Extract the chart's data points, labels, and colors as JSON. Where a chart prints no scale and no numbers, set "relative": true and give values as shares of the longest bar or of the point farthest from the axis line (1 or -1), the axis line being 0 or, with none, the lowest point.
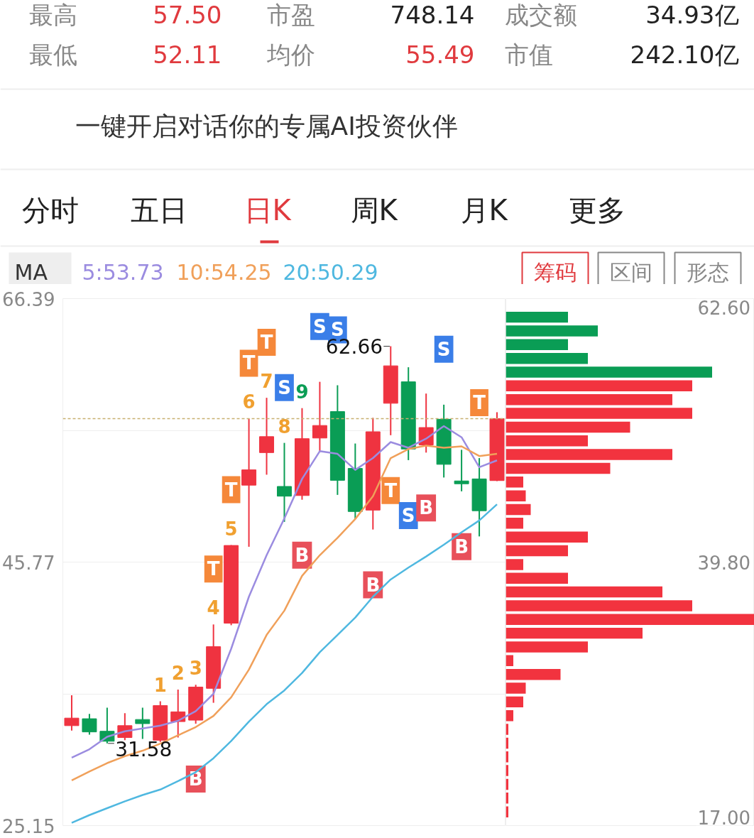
{
  "chart_data": [
    {
      "type": "other",
      "annotations": [
        "最高",
        "57.50",
        "市盈",
        "748.14",
        "成交额",
        "34.93亿",
        "最低",
        "52.11",
        "均价",
        "55.49",
        "市值",
        "242.10亿",
        "一键开启对话你的专属AI投资伙伴",
        "分时",
        "五日",
        "日K",
        "周K",
        "月K",
        "更多"
      ]
    },
    {
      "type": "candlestick",
      "categories": [
        null,
        null,
        null,
        null,
        null,
        null,
        null,
        null,
        null,
        null,
        null,
        null,
        null,
        null,
        null,
        null,
        null,
        null,
        null,
        null,
        null,
        null,
        null,
        null,
        null
      ],
      "ohlc": [
        [
          32.97,
          35.35,
          32.59,
          33.56
        ],
        [
          33.51,
          33.89,
          32.26,
          32.48
        ],
        [
          32.53,
          34.38,
          31.58,
          31.75
        ],
        [
          32.04,
          33.94,
          31.83,
          32.97
        ],
        [
          33.45,
          34.38,
          31.93,
          33.13
        ],
        [
          31.83,
          34.87,
          31.7,
          34.54
        ],
        [
          33.29,
          35.79,
          32.04,
          34.05
        ],
        [
          33.4,
          36.17,
          33.13,
          35.99
        ],
        [
          35.89,
          40.89,
          34.76,
          39.15
        ],
        [
          40.99,
          47.1,
          40.83,
          47.07
        ],
        [
          51.79,
          57.0,
          46.97,
          52.99
        ],
        [
          54.34,
          58.63,
          52.61,
          55.59
        ],
        [
          51.69,
          55.1,
          48.92,
          50.93
        ],
        [
          50.98,
          57.82,
          50.65,
          55.43
        ],
        [
          55.48,
          59.88,
          54.38,
          56.46
        ],
        [
          57.55,
          59.61,
          51.03,
          52.17
        ],
        [
          53.1,
          55.05,
          49.14,
          49.73
        ],
        [
          49.84,
          57.06,
          48.32,
          55.97
        ],
        [
          58.2,
          62.66,
          55.7,
          61.13
        ],
        [
          59.88,
          61.02,
          53.75,
          54.62
        ],
        [
          54.94,
          58.96,
          54.34,
          56.3
        ],
        [
          56.95,
          58.09,
          52.39,
          53.42
        ],
        [
          52.12,
          54.56,
          51.31,
          51.9
        ],
        [
          52.28,
          53.91,
          47.78,
          49.79
        ],
        [
          52.15,
          57.5,
          52.11,
          57.0
        ]
      ],
      "colors": [
        "#ef3340",
        "#0a9d55",
        "#0a9d55",
        "#ef3340",
        "#0a9d55",
        "#ef3340",
        "#ef3340",
        "#ef3340",
        "#ef3340",
        "#ef3340",
        "#ef3340",
        "#ef3340",
        "#0a9d55",
        "#ef3340",
        "#ef3340",
        "#0a9d55",
        "#0a9d55",
        "#ef3340",
        "#ef3340",
        "#0a9d55",
        "#ef3340",
        "#0a9d55",
        "#0a9d55",
        "#0a9d55",
        "#ef3340"
      ],
      "series": [
        {
          "name": "5:53.73",
          "type": "line",
          "color": "#9b8ce0",
          "values": [
            30.47,
            31.12,
            32.1,
            32.53,
            32.75,
            32.97,
            33.35,
            34.11,
            35.46,
            38.99,
            43.06,
            46.31,
            49.19,
            52.28,
            54.45,
            54.24,
            52.99,
            53.91,
            55.16,
            54.72,
            55.43,
            56.41,
            55.54,
            53.2,
            53.73
          ]
        },
        {
          "name": "10:54.25",
          "type": "line",
          "color": "#f0a05a",
          "values": [
            28.68,
            29.38,
            30.04,
            30.58,
            31.01,
            31.56,
            32.21,
            32.86,
            33.73,
            35.19,
            37.36,
            40.07,
            41.97,
            44.69,
            46.31,
            47.67,
            49.14,
            50.93,
            53.91,
            54.62,
            54.89,
            54.72,
            54.83,
            54.07,
            54.25
          ]
        },
        {
          "name": "20:50.29",
          "type": "line",
          "color": "#4fb8e0",
          "values": [
            25.37,
            25.97,
            26.51,
            27.05,
            27.54,
            27.97,
            28.63,
            29.33,
            30.42,
            31.77,
            33.29,
            34.65,
            35.73,
            37.09,
            38.72,
            40.07,
            41.43,
            43.06,
            44.41,
            45.34,
            46.21,
            47.13,
            48.1,
            49.03,
            50.29
          ]
        }
      ],
      "ylim": [
        25.15,
        66.39
      ],
      "yticks": [
        66.39,
        {
          "value": 56.08,
          "label": null
        },
        45.77,
        {
          "value": 35.46,
          "label": null
        },
        25.15
      ],
      "grid": "y",
      "tick_labels": "y",
      "legend": "top left",
      "ref_lines": [
        {
          "axis": "y",
          "value": 57.0,
          "color": "#c8b070",
          "line_style": "dashed"
        }
      ],
      "annotations": [
        "MA",
        "62.66",
        "31.58",
        {
          "text": "1",
          "y": 34.87
        },
        {
          "text": "2",
          "y": 35.79
        },
        {
          "text": "3",
          "y": 36.17
        },
        {
          "text": "4",
          "y": 40.89
        },
        {
          "text": "5",
          "y": 47.1
        },
        {
          "text": "6",
          "y": 57.0
        },
        {
          "text": "7",
          "y": 58.63
        },
        {
          "text": "8",
          "y": 55.1
        },
        {
          "text": "9",
          "y": 57.82
        },
        {
          "text": "T",
          "y": 40.89
        },
        {
          "text": "T",
          "y": 47.1
        },
        {
          "text": "T",
          "y": 57.0
        },
        {
          "text": "T",
          "y": 58.63
        },
        {
          "text": "T",
          "y": 55.7
        },
        {
          "text": "T",
          "y": 53.91
        },
        {
          "text": "S",
          "y": 55.1
        },
        {
          "text": "S",
          "y": 59.88
        },
        {
          "text": "S",
          "y": 59.61
        },
        {
          "text": "S",
          "y": 53.75
        },
        {
          "text": "S",
          "y": 58.09
        },
        {
          "text": "B",
          "y": 33.13
        },
        {
          "text": "B",
          "y": 50.65
        },
        {
          "text": "B",
          "y": 48.32
        },
        {
          "text": "B",
          "y": 54.34
        },
        {
          "text": "B",
          "y": 51.31
        }
      ]
    },
    {
      "type": "bar",
      "orientation": "horizontal",
      "relative": true,
      "tick_labels": false,
      "categories": [
        null,
        null,
        null,
        null,
        null,
        null,
        null,
        null,
        null,
        null,
        null,
        null,
        null,
        null,
        null,
        null,
        null,
        null,
        null,
        null,
        null,
        null,
        null,
        null,
        null,
        null,
        null,
        null,
        null,
        null,
        null,
        null,
        null,
        null,
        null,
        null,
        null
      ],
      "values": [
        0.25,
        0.37,
        0.25,
        0.33,
        0.83,
        0.75,
        0.67,
        0.75,
        0.5,
        0.33,
        0.67,
        0.42,
        0.07,
        0.08,
        0.1,
        0.07,
        0.33,
        0.25,
        0.07,
        0.25,
        0.63,
        0.75,
        1,
        0.55,
        0.33,
        0.03,
        0.22,
        0.08,
        0.07,
        0.03,
        0.01,
        0.01,
        0.01,
        0.01,
        0.01,
        0.01,
        0.01
      ],
      "colors": [
        "#0a9d55",
        "#0a9d55",
        "#0a9d55",
        "#0a9d55",
        "#0a9d55",
        "#f2333f",
        "#f2333f",
        "#f2333f",
        "#f2333f",
        "#f2333f",
        "#f2333f",
        "#f2333f",
        "#f2333f",
        "#f2333f",
        "#f2333f",
        "#f2333f",
        "#f2333f",
        "#f2333f",
        "#f2333f",
        "#f2333f",
        "#f2333f",
        "#f2333f",
        "#f2333f",
        "#f2333f",
        "#f2333f",
        "#f2333f",
        "#f2333f",
        "#f2333f",
        "#f2333f",
        "#f2333f",
        "#f2333f",
        "#f2333f",
        "#f2333f",
        "#f2333f",
        "#f2333f",
        "#f2333f",
        "#f2333f"
      ],
      "annotations": [
        "筹码",
        "区间",
        "形态",
        "62.60",
        "39.80",
        "17.00"
      ]
    }
  ]
}
